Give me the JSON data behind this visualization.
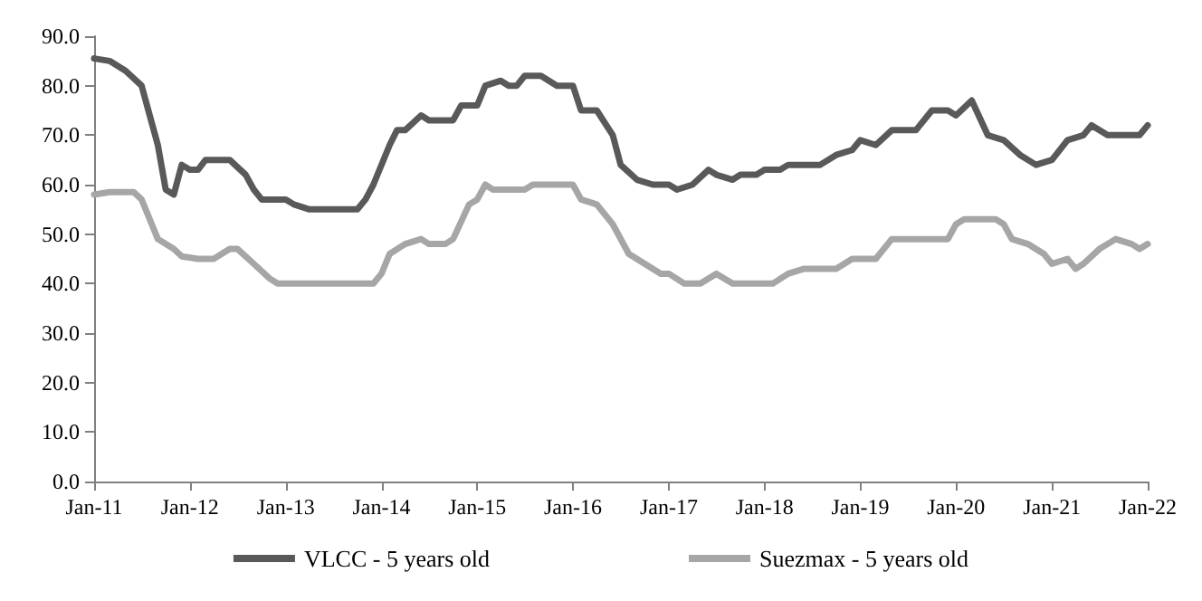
{
  "chart_data": {
    "type": "line",
    "xlim": [
      "2011-01",
      "2022-01"
    ],
    "ylim": [
      0,
      90
    ],
    "xticks": [
      {
        "value": "2011-01",
        "label": "Jan-11"
      },
      {
        "value": "2012-01",
        "label": "Jan-12"
      },
      {
        "value": "2013-01",
        "label": "Jan-13"
      },
      {
        "value": "2014-01",
        "label": "Jan-14"
      },
      {
        "value": "2015-01",
        "label": "Jan-15"
      },
      {
        "value": "2016-01",
        "label": "Jan-16"
      },
      {
        "value": "2017-01",
        "label": "Jan-17"
      },
      {
        "value": "2018-01",
        "label": "Jan-18"
      },
      {
        "value": "2019-01",
        "label": "Jan-19"
      },
      {
        "value": "2020-01",
        "label": "Jan-20"
      },
      {
        "value": "2021-01",
        "label": "Jan-21"
      },
      {
        "value": "2022-01",
        "label": "Jan-22"
      }
    ],
    "yticks": [
      {
        "value": 0,
        "label": "0.0"
      },
      {
        "value": 10,
        "label": "10.0"
      },
      {
        "value": 20,
        "label": "20.0"
      },
      {
        "value": 30,
        "label": "30.0"
      },
      {
        "value": 40,
        "label": "40.0"
      },
      {
        "value": 50,
        "label": "50.0"
      },
      {
        "value": 60,
        "label": "60.0"
      },
      {
        "value": 70,
        "label": "70.0"
      },
      {
        "value": 80,
        "label": "80.0"
      },
      {
        "value": 90,
        "label": "90.0"
      }
    ],
    "grid": false,
    "legend": "bottom",
    "marker": "none",
    "line_style": "solid",
    "series": [
      {
        "name": "VLCC - 5 years old",
        "color": "#595959",
        "x": [
          "2011-01",
          "2011-03",
          "2011-05",
          "2011-07",
          "2011-08",
          "2011-09",
          "2011-10",
          "2011-11",
          "2011-12",
          "2012-01",
          "2012-02",
          "2012-03",
          "2012-06",
          "2012-08",
          "2012-09",
          "2012-10",
          "2013-01",
          "2013-02",
          "2013-04",
          "2013-10",
          "2013-11",
          "2013-12",
          "2014-02",
          "2014-03",
          "2014-04",
          "2014-06",
          "2014-07",
          "2014-10",
          "2014-11",
          "2015-01",
          "2015-02",
          "2015-04",
          "2015-05",
          "2015-06",
          "2015-07",
          "2015-09",
          "2015-11",
          "2016-01",
          "2016-02",
          "2016-04",
          "2016-06",
          "2016-07",
          "2016-09",
          "2016-11",
          "2017-01",
          "2017-02",
          "2017-04",
          "2017-06",
          "2017-07",
          "2017-09",
          "2017-10",
          "2017-12",
          "2018-01",
          "2018-03",
          "2018-04",
          "2018-08",
          "2018-10",
          "2018-12",
          "2019-01",
          "2019-03",
          "2019-05",
          "2019-08",
          "2019-10",
          "2019-12",
          "2020-01",
          "2020-03",
          "2020-05",
          "2020-07",
          "2020-09",
          "2020-11",
          "2021-01",
          "2021-03",
          "2021-05",
          "2021-06",
          "2021-08",
          "2021-12",
          "2022-01"
        ],
        "values": [
          85.5,
          85,
          83,
          80,
          74,
          68,
          59,
          58,
          64,
          63,
          63,
          65,
          65,
          62,
          59,
          57,
          57,
          56,
          55,
          55,
          57,
          60,
          68,
          71,
          71,
          74,
          73,
          73,
          76,
          76,
          80,
          81,
          80,
          80,
          82,
          82,
          80,
          80,
          75,
          75,
          70,
          64,
          61,
          60,
          60,
          59,
          60,
          63,
          62,
          61,
          62,
          62,
          63,
          63,
          64,
          64,
          66,
          67,
          69,
          68,
          71,
          71,
          75,
          75,
          74,
          77,
          70,
          69,
          66,
          64,
          65,
          69,
          70,
          72,
          70,
          70,
          72
        ]
      },
      {
        "name": "Suezmax - 5 years old",
        "color": "#a6a6a6",
        "x": [
          "2011-01",
          "2011-03",
          "2011-06",
          "2011-07",
          "2011-09",
          "2011-11",
          "2011-12",
          "2012-02",
          "2012-04",
          "2012-06",
          "2012-07",
          "2012-09",
          "2012-11",
          "2012-12",
          "2013-06",
          "2013-12",
          "2014-01",
          "2014-02",
          "2014-04",
          "2014-06",
          "2014-07",
          "2014-09",
          "2014-10",
          "2014-12",
          "2015-01",
          "2015-02",
          "2015-03",
          "2015-07",
          "2015-08",
          "2015-12",
          "2016-01",
          "2016-02",
          "2016-04",
          "2016-06",
          "2016-08",
          "2016-10",
          "2016-12",
          "2017-01",
          "2017-03",
          "2017-05",
          "2017-07",
          "2017-09",
          "2017-12",
          "2018-02",
          "2018-04",
          "2018-06",
          "2018-10",
          "2018-12",
          "2019-03",
          "2019-05",
          "2019-12",
          "2020-01",
          "2020-02",
          "2020-06",
          "2020-07",
          "2020-08",
          "2020-10",
          "2020-12",
          "2021-01",
          "2021-03",
          "2021-04",
          "2021-05",
          "2021-07",
          "2021-09",
          "2021-11",
          "2021-12",
          "2022-01"
        ],
        "values": [
          58,
          58.5,
          58.5,
          57,
          49,
          47,
          45.5,
          45,
          45,
          47,
          47,
          44,
          41,
          40,
          40,
          40,
          42,
          46,
          48,
          49,
          48,
          48,
          49,
          56,
          57,
          60,
          59,
          59,
          60,
          60,
          60,
          57,
          56,
          52,
          46,
          44,
          42,
          42,
          40,
          40,
          42,
          40,
          40,
          40,
          42,
          43,
          43,
          45,
          45,
          49,
          49,
          52,
          53,
          53,
          52,
          49,
          48,
          46,
          44,
          45,
          43,
          44,
          47,
          49,
          48,
          47,
          48
        ]
      }
    ]
  }
}
